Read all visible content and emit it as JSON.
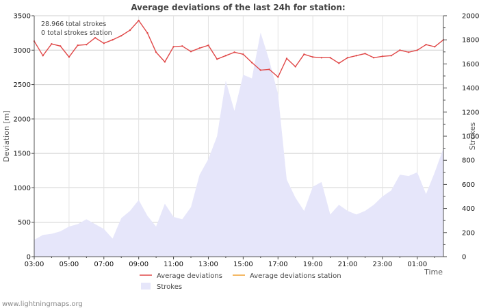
{
  "chart_data": {
    "type": "line",
    "title": "Average deviations of the last 24h for station:",
    "info_lines": [
      "28.966 total strokes",
      "0 total strokes station"
    ],
    "x_tick_labels": [
      "03:00",
      "05:00",
      "07:00",
      "09:00",
      "11:00",
      "13:00",
      "15:00",
      "17:00",
      "19:00",
      "21:00",
      "23:00",
      "01:00"
    ],
    "x_tick_hours": [
      0,
      2,
      4,
      6,
      8,
      10,
      12,
      14,
      16,
      18,
      20,
      22
    ],
    "x_range_hours": [
      0,
      23.5
    ],
    "x_label": "Time",
    "y_left": {
      "label": "Deviation  [m]",
      "range": [
        0,
        3500
      ],
      "ticks": [
        0,
        500,
        1000,
        1500,
        2000,
        2500,
        3000,
        3500
      ]
    },
    "y_right": {
      "label": "Strokes",
      "range": [
        0,
        2000
      ],
      "ticks": [
        0,
        200,
        400,
        600,
        800,
        1000,
        1200,
        1400,
        1600,
        1800,
        2000
      ]
    },
    "series": [
      {
        "name": "Average deviations",
        "axis": "left",
        "color": "#e04848",
        "x": [
          0,
          0.5,
          1,
          1.5,
          2,
          2.5,
          3,
          3.5,
          4,
          4.5,
          5,
          5.5,
          6,
          6.5,
          7,
          7.5,
          8,
          8.5,
          9,
          9.5,
          10,
          10.5,
          11,
          11.5,
          12,
          12.5,
          13,
          13.5,
          14,
          14.5,
          15,
          15.5,
          16,
          16.5,
          17,
          17.5,
          18,
          18.5,
          19,
          19.5,
          20,
          20.5,
          21,
          21.5,
          22,
          22.5,
          23,
          23.5
        ],
        "values": [
          3130,
          2920,
          3090,
          3060,
          2900,
          3070,
          3080,
          3180,
          3100,
          3150,
          3210,
          3290,
          3430,
          3250,
          2970,
          2830,
          3050,
          3060,
          2980,
          3030,
          3070,
          2870,
          2920,
          2970,
          2940,
          2820,
          2710,
          2720,
          2610,
          2880,
          2760,
          2940,
          2900,
          2890,
          2890,
          2810,
          2890,
          2920,
          2950,
          2890,
          2910,
          2920,
          3000,
          2970,
          3000,
          3080,
          3050,
          3150
        ]
      },
      {
        "name": "Average deviations station",
        "axis": "left",
        "color": "#f0a030",
        "values": []
      },
      {
        "name": "Strokes",
        "axis": "right",
        "type": "area",
        "color": "#e6e6fa",
        "x": [
          0,
          0.5,
          1,
          1.5,
          2,
          2.5,
          3,
          3.5,
          4,
          4.5,
          5,
          5.5,
          6,
          6.5,
          7,
          7.5,
          8,
          8.5,
          9,
          9.5,
          10,
          10.5,
          11,
          11.5,
          12,
          12.5,
          13,
          13.5,
          14,
          14.5,
          15,
          15.5,
          16,
          16.5,
          17,
          17.5,
          18,
          18.5,
          19,
          19.5,
          20,
          20.5,
          21,
          21.5,
          22,
          22.5,
          23,
          23.5
        ],
        "values": [
          140,
          180,
          190,
          210,
          250,
          270,
          310,
          270,
          230,
          150,
          320,
          380,
          470,
          340,
          250,
          440,
          330,
          310,
          410,
          680,
          810,
          1000,
          1460,
          1210,
          1510,
          1480,
          1860,
          1630,
          1350,
          640,
          490,
          380,
          580,
          620,
          350,
          430,
          380,
          350,
          380,
          430,
          500,
          550,
          680,
          670,
          700,
          520,
          700,
          900
        ]
      }
    ]
  },
  "legend": {
    "items": [
      {
        "label": "Average deviations",
        "color": "#e04848",
        "kind": "line"
      },
      {
        "label": "Average deviations station",
        "color": "#f0a030",
        "kind": "line"
      },
      {
        "label": "Strokes",
        "color": "#e6e6fa",
        "kind": "area"
      }
    ]
  },
  "footer": {
    "source": "www.lightningmaps.org"
  }
}
